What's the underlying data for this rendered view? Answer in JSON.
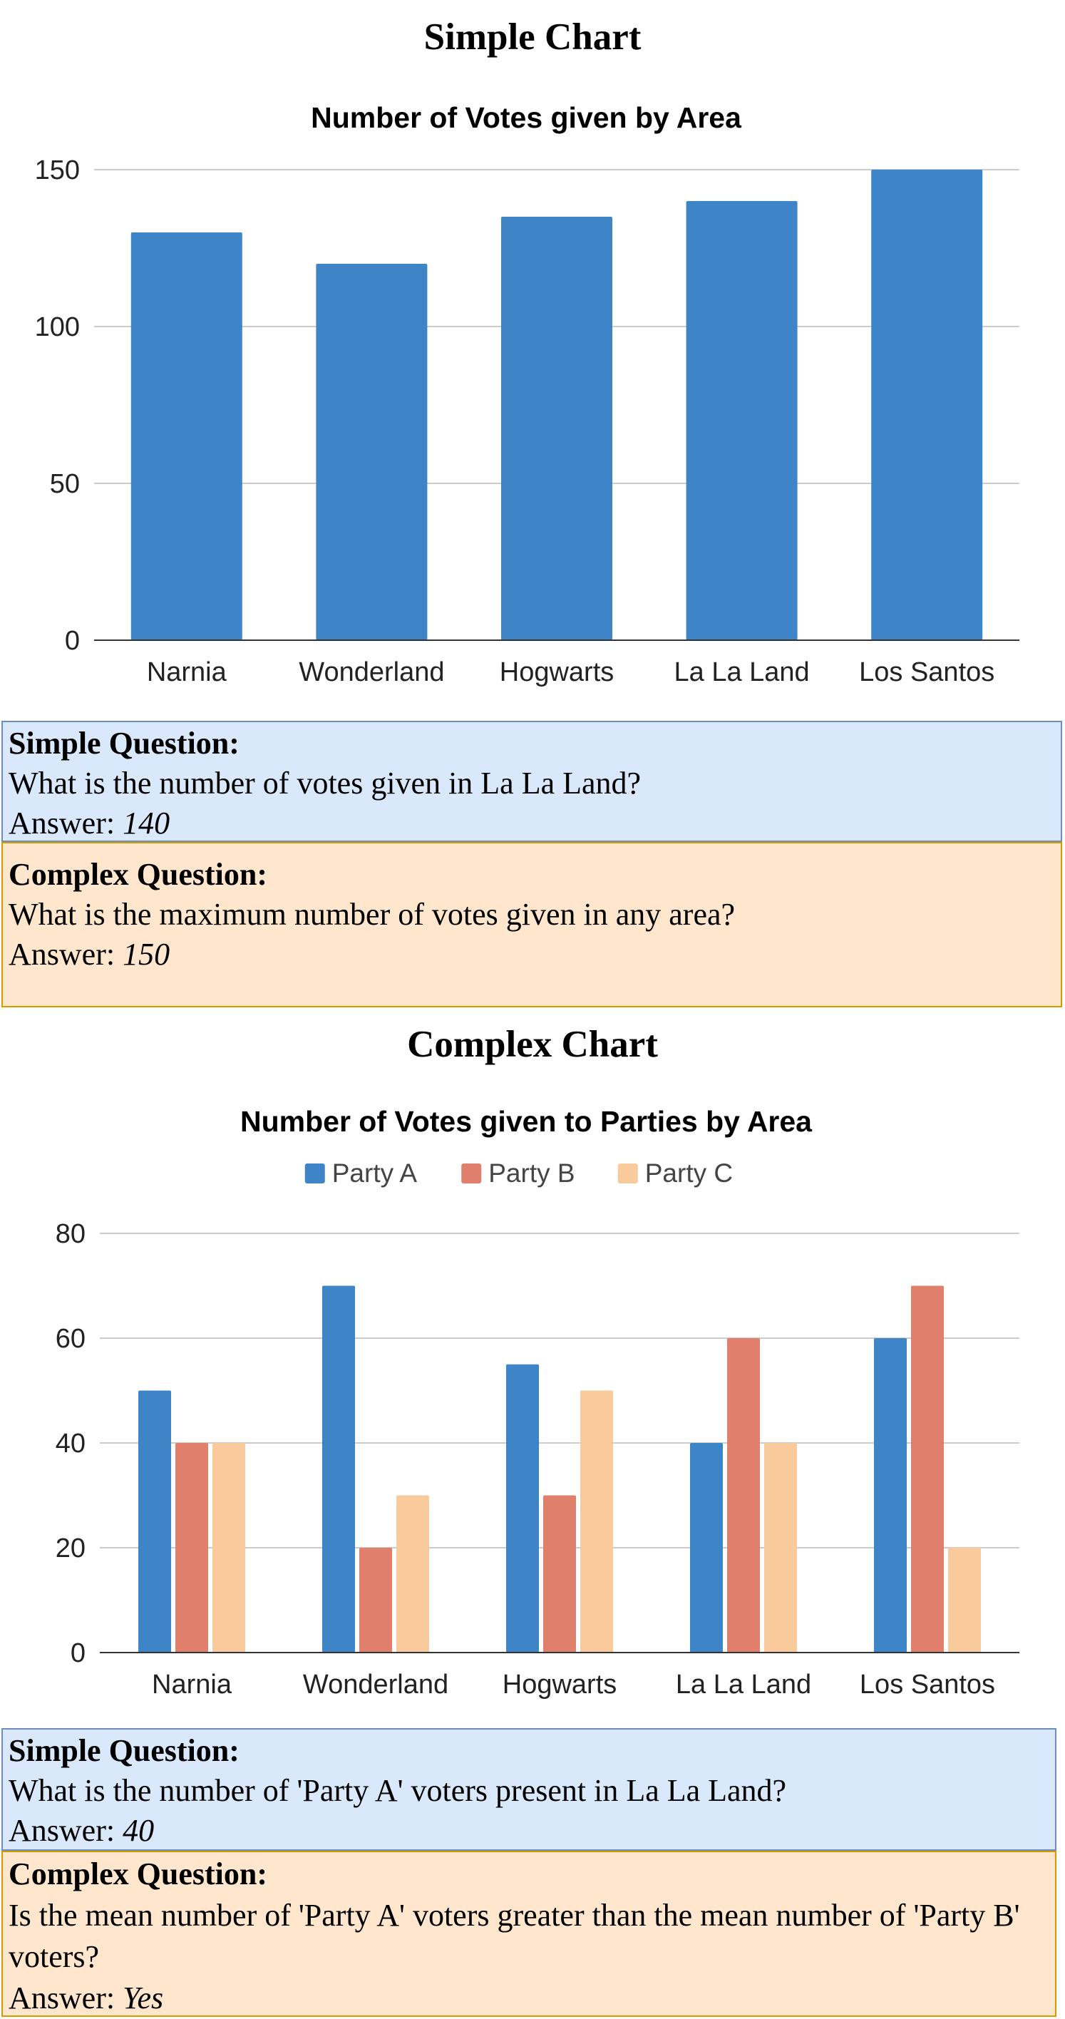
{
  "sections": {
    "simple_heading": "Simple Chart",
    "complex_heading": "Complex Chart"
  },
  "qa": {
    "chart1_simple": {
      "label": "Simple Question:",
      "question": "What is the number of votes given in La La Land?",
      "answer_prefix": "Answer: ",
      "answer": "140"
    },
    "chart1_complex": {
      "label": "Complex Question:",
      "question": "What is the maximum number of votes given in any area?",
      "answer_prefix": "Answer: ",
      "answer": "150"
    },
    "chart2_simple": {
      "label": "Simple Question:",
      "question": "What is the number of 'Party A' voters present in La La Land?",
      "answer_prefix": "Answer: ",
      "answer": "40"
    },
    "chart2_complex": {
      "label": "Complex Question:",
      "question": "Is the mean number of 'Party A' voters greater than the mean number of 'Party B' voters?",
      "answer_prefix": "Answer: ",
      "answer": "Yes"
    }
  },
  "chart_data": [
    {
      "type": "bar",
      "title": "Number of Votes given by Area",
      "categories": [
        "Narnia",
        "Wonderland",
        "Hogwarts",
        "La La Land",
        "Los Santos"
      ],
      "values": [
        130,
        120,
        135,
        140,
        150
      ],
      "ylim": [
        0,
        150
      ],
      "yticks": [
        0,
        50,
        100,
        150
      ],
      "grid": true,
      "color": "#3d85c6"
    },
    {
      "type": "bar",
      "title": "Number of Votes given to Parties by Area",
      "categories": [
        "Narnia",
        "Wonderland",
        "Hogwarts",
        "La La Land",
        "Los Santos"
      ],
      "series": [
        {
          "name": "Party A",
          "values": [
            50,
            70,
            55,
            40,
            60
          ],
          "color": "#3d85c6"
        },
        {
          "name": "Party B",
          "values": [
            40,
            20,
            30,
            60,
            70
          ],
          "color": "#e07f6c"
        },
        {
          "name": "Party C",
          "values": [
            40,
            30,
            50,
            40,
            20
          ],
          "color": "#f9cb9c"
        }
      ],
      "ylim": [
        0,
        80
      ],
      "yticks": [
        0,
        20,
        40,
        60,
        80
      ],
      "grid": true,
      "legend": "top"
    }
  ]
}
